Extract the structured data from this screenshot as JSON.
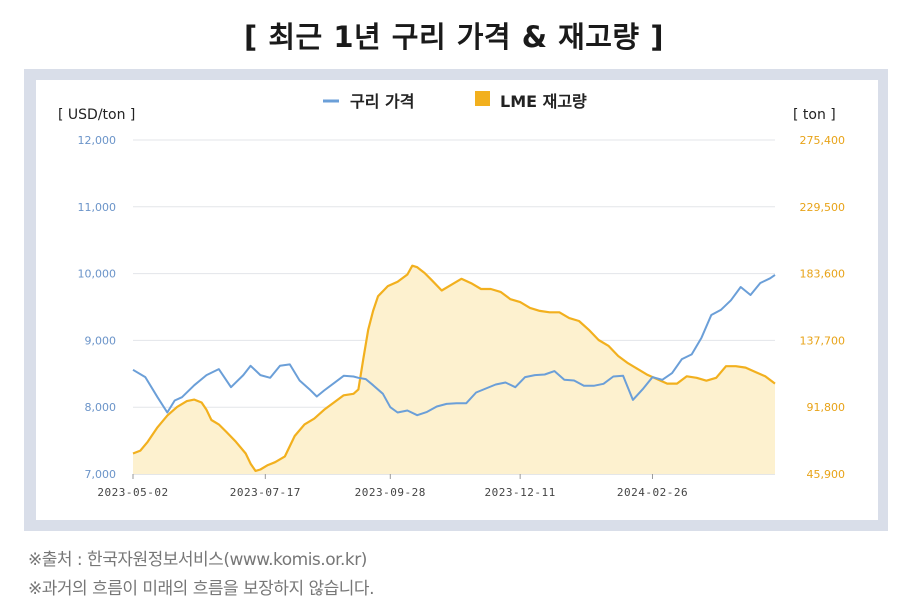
{
  "page": {
    "title": "[ 최근 1년 구리 가격 & 재고량 ]",
    "source_line": "※출처 : 한국자원정보서비스(www.komis.or.kr)",
    "disclaimer_line": "※과거의 흐름이 미래의 흐름을 보장하지 않습니다."
  },
  "chart_data": {
    "type": "line",
    "title": "",
    "left_unit": "[ USD/ton ]",
    "right_unit": "[ ton ]",
    "legend": [
      {
        "name": "구리 가격",
        "color": "#6b9fd8",
        "marker": "line"
      },
      {
        "name": "LME 재고량",
        "color": "#f2b01e",
        "marker": "square"
      }
    ],
    "legend_position": "top-center",
    "ylim_left": [
      7000,
      12000
    ],
    "ylim_right": [
      45900,
      275400
    ],
    "left_ticks": [
      "7,000",
      "8,000",
      "9,000",
      "10,000",
      "11,000",
      "12,000"
    ],
    "right_ticks": [
      "45,900",
      "91,800",
      "137,700",
      "183,600",
      "229,500",
      "275,400"
    ],
    "x_ticks": [
      "2023-05-02",
      "2023-07-17",
      "2023-09-28",
      "2023-12-11",
      "2024-02-26"
    ],
    "x_tick_index": [
      0,
      54,
      105,
      158,
      212
    ],
    "x_range": [
      0,
      262
    ],
    "grid": "horizontal",
    "series": [
      {
        "name": "구리 가격",
        "axis": "left",
        "x": [
          0,
          5,
          10,
          14,
          17,
          20,
          25,
          30,
          35,
          40,
          45,
          48,
          52,
          56,
          60,
          64,
          68,
          72,
          75,
          78,
          82,
          86,
          90,
          92,
          95,
          98,
          102,
          105,
          108,
          112,
          116,
          120,
          124,
          128,
          132,
          136,
          140,
          144,
          148,
          152,
          156,
          160,
          164,
          168,
          172,
          176,
          180,
          184,
          188,
          192,
          196,
          200,
          204,
          208,
          212,
          216,
          220,
          224,
          228,
          232,
          236,
          240,
          244,
          248,
          252,
          256,
          260,
          262
        ],
        "values": [
          8560,
          8450,
          8150,
          7920,
          8100,
          8150,
          8330,
          8480,
          8570,
          8300,
          8480,
          8620,
          8480,
          8440,
          8620,
          8640,
          8400,
          8270,
          8160,
          8250,
          8360,
          8470,
          8460,
          8440,
          8420,
          8330,
          8200,
          8000,
          7920,
          7950,
          7880,
          7930,
          8010,
          8050,
          8060,
          8060,
          8220,
          8280,
          8340,
          8370,
          8300,
          8450,
          8480,
          8490,
          8540,
          8410,
          8400,
          8320,
          8320,
          8350,
          8460,
          8470,
          8110,
          8270,
          8450,
          8410,
          8510,
          8720,
          8790,
          9040,
          9380,
          9460,
          9600,
          9800,
          9680,
          9860,
          9930,
          9980
        ]
      },
      {
        "name": "LME 재고량",
        "axis": "right",
        "x": [
          0,
          3,
          6,
          10,
          14,
          18,
          22,
          25,
          28,
          30,
          32,
          35,
          38,
          42,
          46,
          48,
          50,
          52,
          55,
          58,
          62,
          66,
          70,
          74,
          78,
          82,
          86,
          90,
          92,
          94,
          96,
          98,
          100,
          104,
          108,
          112,
          114,
          116,
          119,
          122,
          126,
          130,
          134,
          138,
          142,
          146,
          150,
          154,
          158,
          162,
          166,
          170,
          174,
          178,
          182,
          186,
          190,
          194,
          198,
          202,
          206,
          210,
          214,
          218,
          222,
          226,
          230,
          234,
          238,
          242,
          246,
          250,
          254,
          258,
          262
        ],
        "values": [
          60000,
          62000,
          68000,
          78000,
          86000,
          92000,
          96000,
          97000,
          95000,
          90000,
          83000,
          80000,
          75000,
          68000,
          60000,
          53000,
          48000,
          49000,
          52000,
          54000,
          58000,
          72000,
          80000,
          84000,
          90000,
          95000,
          100000,
          101000,
          104000,
          125000,
          145000,
          158000,
          168000,
          175000,
          178000,
          183000,
          189000,
          188000,
          184000,
          179000,
          172000,
          176000,
          180000,
          177000,
          173000,
          173000,
          171000,
          166000,
          164000,
          160000,
          158000,
          157000,
          157000,
          153000,
          151000,
          145000,
          138000,
          134000,
          127000,
          122000,
          118000,
          114000,
          111000,
          108000,
          108000,
          113000,
          112000,
          110000,
          112000,
          120000,
          120000,
          119000,
          116000,
          113000,
          108000
        ]
      }
    ]
  }
}
